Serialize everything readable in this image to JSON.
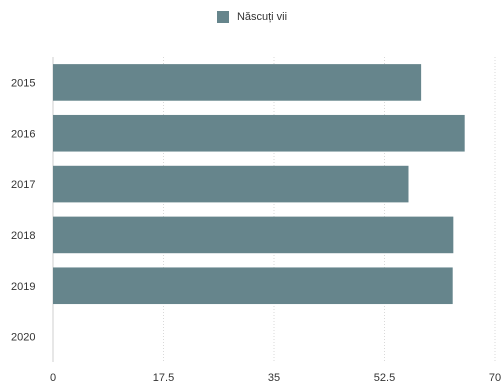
{
  "chart_data": {
    "type": "bar",
    "orientation": "horizontal",
    "categories": [
      "2015",
      "2016",
      "2017",
      "2018",
      "2019",
      "2020"
    ],
    "series": [
      {
        "name": "Născuți vii",
        "values": [
          58.3,
          65.2,
          56.3,
          63.4,
          63.3,
          null
        ],
        "color": "#66858c"
      }
    ],
    "xlim": [
      0,
      70
    ],
    "xticks": [
      "0",
      "17.5",
      "35",
      "52.5",
      "70"
    ],
    "xlabel": "",
    "ylabel": "",
    "grid": true,
    "legend_position": "top-center"
  }
}
